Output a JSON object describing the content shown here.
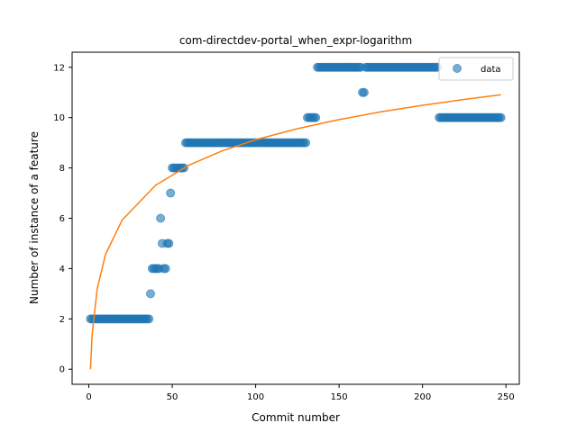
{
  "chart_data": {
    "type": "scatter",
    "title": "com-directdev-portal_when_expr-logarithm",
    "xlabel": "Commit number",
    "ylabel": "Number of instance of a feature",
    "xlim": [
      -10,
      258
    ],
    "ylim": [
      -0.6,
      12.6
    ],
    "xticks": [
      0,
      50,
      100,
      150,
      200,
      250
    ],
    "yticks": [
      0,
      2,
      4,
      6,
      8,
      10,
      12
    ],
    "grid": false,
    "legend_position": "top-right",
    "colors": {
      "data": "#1f77b4",
      "fit": "#ff7f0e"
    },
    "series": [
      {
        "name": "data",
        "kind": "scatter",
        "segments": [
          {
            "x_from": 1,
            "x_to": 36,
            "y": 2
          },
          {
            "x_from": 37,
            "x_to": 37,
            "y": 3
          },
          {
            "x_from": 38,
            "x_to": 42,
            "y": 4
          },
          {
            "x_from": 43,
            "x_to": 43,
            "y": 6
          },
          {
            "x_from": 44,
            "x_to": 44,
            "y": 5
          },
          {
            "x_from": 45,
            "x_to": 46,
            "y": 4
          },
          {
            "x_from": 47,
            "x_to": 48,
            "y": 5
          },
          {
            "x_from": 49,
            "x_to": 49,
            "y": 7
          },
          {
            "x_from": 50,
            "x_to": 57,
            "y": 8
          },
          {
            "x_from": 58,
            "x_to": 130,
            "y": 9
          },
          {
            "x_from": 131,
            "x_to": 136,
            "y": 10
          },
          {
            "x_from": 137,
            "x_to": 163,
            "y": 12
          },
          {
            "x_from": 164,
            "x_to": 165,
            "y": 11
          },
          {
            "x_from": 166,
            "x_to": 209,
            "y": 12
          },
          {
            "x_from": 210,
            "x_to": 247,
            "y": 10
          }
        ]
      },
      {
        "name": "",
        "kind": "line",
        "model": "logarithmic",
        "points": [
          [
            1,
            0.0
          ],
          [
            2,
            1.37
          ],
          [
            5,
            3.19
          ],
          [
            10,
            4.56
          ],
          [
            20,
            5.93
          ],
          [
            40,
            7.31
          ],
          [
            60,
            8.11
          ],
          [
            80,
            8.68
          ],
          [
            100,
            9.12
          ],
          [
            125,
            9.56
          ],
          [
            150,
            9.92
          ],
          [
            175,
            10.23
          ],
          [
            200,
            10.49
          ],
          [
            225,
            10.72
          ],
          [
            247,
            10.91
          ]
        ]
      }
    ]
  }
}
